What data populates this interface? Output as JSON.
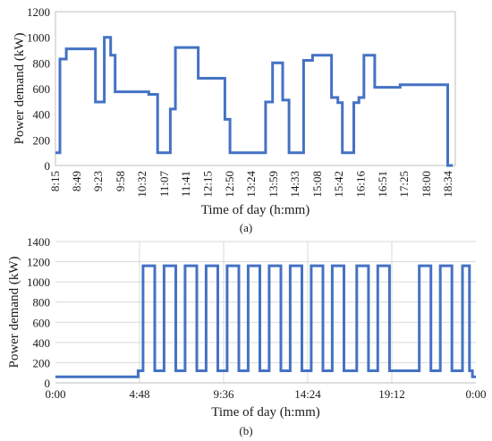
{
  "chart_data": [
    {
      "type": "line",
      "step": true,
      "xlabel": "Time of day (h:mm)",
      "ylabel": "Power demand (kW)",
      "ylim": [
        0,
        1200
      ],
      "yticks": [
        0,
        200,
        400,
        600,
        800,
        1000,
        1200
      ],
      "xlim": [
        "8:15",
        "18:45"
      ],
      "xticks": [
        "8:15",
        "8:49",
        "9:23",
        "9:58",
        "10:32",
        "11:07",
        "11:41",
        "12:15",
        "12:50",
        "13:24",
        "13:59",
        "14:33",
        "15:08",
        "15:42",
        "16:16",
        "16:51",
        "17:25",
        "18:00",
        "18:34"
      ],
      "grid": false,
      "caption": "(a)",
      "series": [
        {
          "x": [
            "8:15",
            "8:22",
            "8:22",
            "8:32",
            "8:32",
            "8:41",
            "8:41",
            "9:18",
            "9:18",
            "9:32",
            "9:32",
            "9:42",
            "9:42",
            "9:49",
            "9:49",
            "9:57",
            "9:57",
            "10:42",
            "10:42",
            "10:56",
            "10:56",
            "11:16",
            "11:16",
            "11:24",
            "11:24",
            "12:00",
            "12:00",
            "12:42",
            "12:42",
            "12:50",
            "12:50",
            "13:01",
            "13:01",
            "13:46",
            "13:46",
            "13:57",
            "13:57",
            "14:13",
            "14:13",
            "14:23",
            "14:23",
            "14:46",
            "14:46",
            "15:00",
            "15:00",
            "15:30",
            "15:30",
            "15:40",
            "15:40",
            "15:47",
            "15:47",
            "16:05",
            "16:05",
            "16:13",
            "16:13",
            "16:21",
            "16:21",
            "16:38",
            "16:38",
            "16:45",
            "16:45",
            "17:18",
            "17:18",
            "17:44",
            "17:44",
            "18:33",
            "18:33",
            "18:41",
            "18:41"
          ],
          "y": [
            100,
            100,
            830,
            830,
            910,
            910,
            910,
            910,
            495,
            495,
            1000,
            1000,
            860,
            860,
            575,
            575,
            575,
            575,
            555,
            555,
            100,
            100,
            440,
            440,
            920,
            920,
            680,
            680,
            360,
            360,
            100,
            100,
            100,
            100,
            495,
            495,
            800,
            800,
            510,
            510,
            100,
            100,
            820,
            820,
            860,
            860,
            530,
            530,
            490,
            490,
            100,
            100,
            490,
            490,
            530,
            530,
            860,
            860,
            610,
            610,
            610,
            610,
            630,
            630,
            630,
            630,
            0,
            0,
            0
          ]
        }
      ]
    },
    {
      "type": "line",
      "step": true,
      "xlabel": "Time of day (h:mm)",
      "ylabel": "Power demand (kW)",
      "ylim": [
        0,
        1400
      ],
      "yticks": [
        0,
        200,
        400,
        600,
        800,
        1000,
        1200,
        1400
      ],
      "xlim": [
        "0:00",
        "24:00"
      ],
      "xticks": [
        "0:00",
        "4:48",
        "9:36",
        "14:24",
        "19:12",
        "0:00"
      ],
      "grid": true,
      "caption": "(b)",
      "series": [
        {
          "base_level": 60,
          "low_level": 120,
          "high_level": 1160,
          "x_start": "0:00",
          "x_end": "24:00",
          "ramp_start": "4:43",
          "ramp_end": "5:00",
          "pulses": [
            {
              "rise": "5:00",
              "fall": "5:40"
            },
            {
              "rise": "6:12",
              "fall": "6:52"
            },
            {
              "rise": "7:24",
              "fall": "8:04"
            },
            {
              "rise": "8:36",
              "fall": "9:16"
            },
            {
              "rise": "9:48",
              "fall": "10:28"
            },
            {
              "rise": "11:00",
              "fall": "11:40"
            },
            {
              "rise": "12:12",
              "fall": "12:52"
            },
            {
              "rise": "13:24",
              "fall": "14:04"
            },
            {
              "rise": "14:36",
              "fall": "15:16"
            },
            {
              "rise": "15:48",
              "fall": "16:28"
            },
            {
              "rise": "17:12",
              "fall": "17:52"
            },
            {
              "rise": "18:24",
              "fall": "19:04"
            },
            {
              "rise": "20:46",
              "fall": "21:26"
            },
            {
              "rise": "21:58",
              "fall": "22:38"
            },
            {
              "rise": "23:14",
              "fall": "23:38"
            }
          ],
          "tail_start": "23:38",
          "tail_low": "23:48"
        }
      ]
    }
  ]
}
